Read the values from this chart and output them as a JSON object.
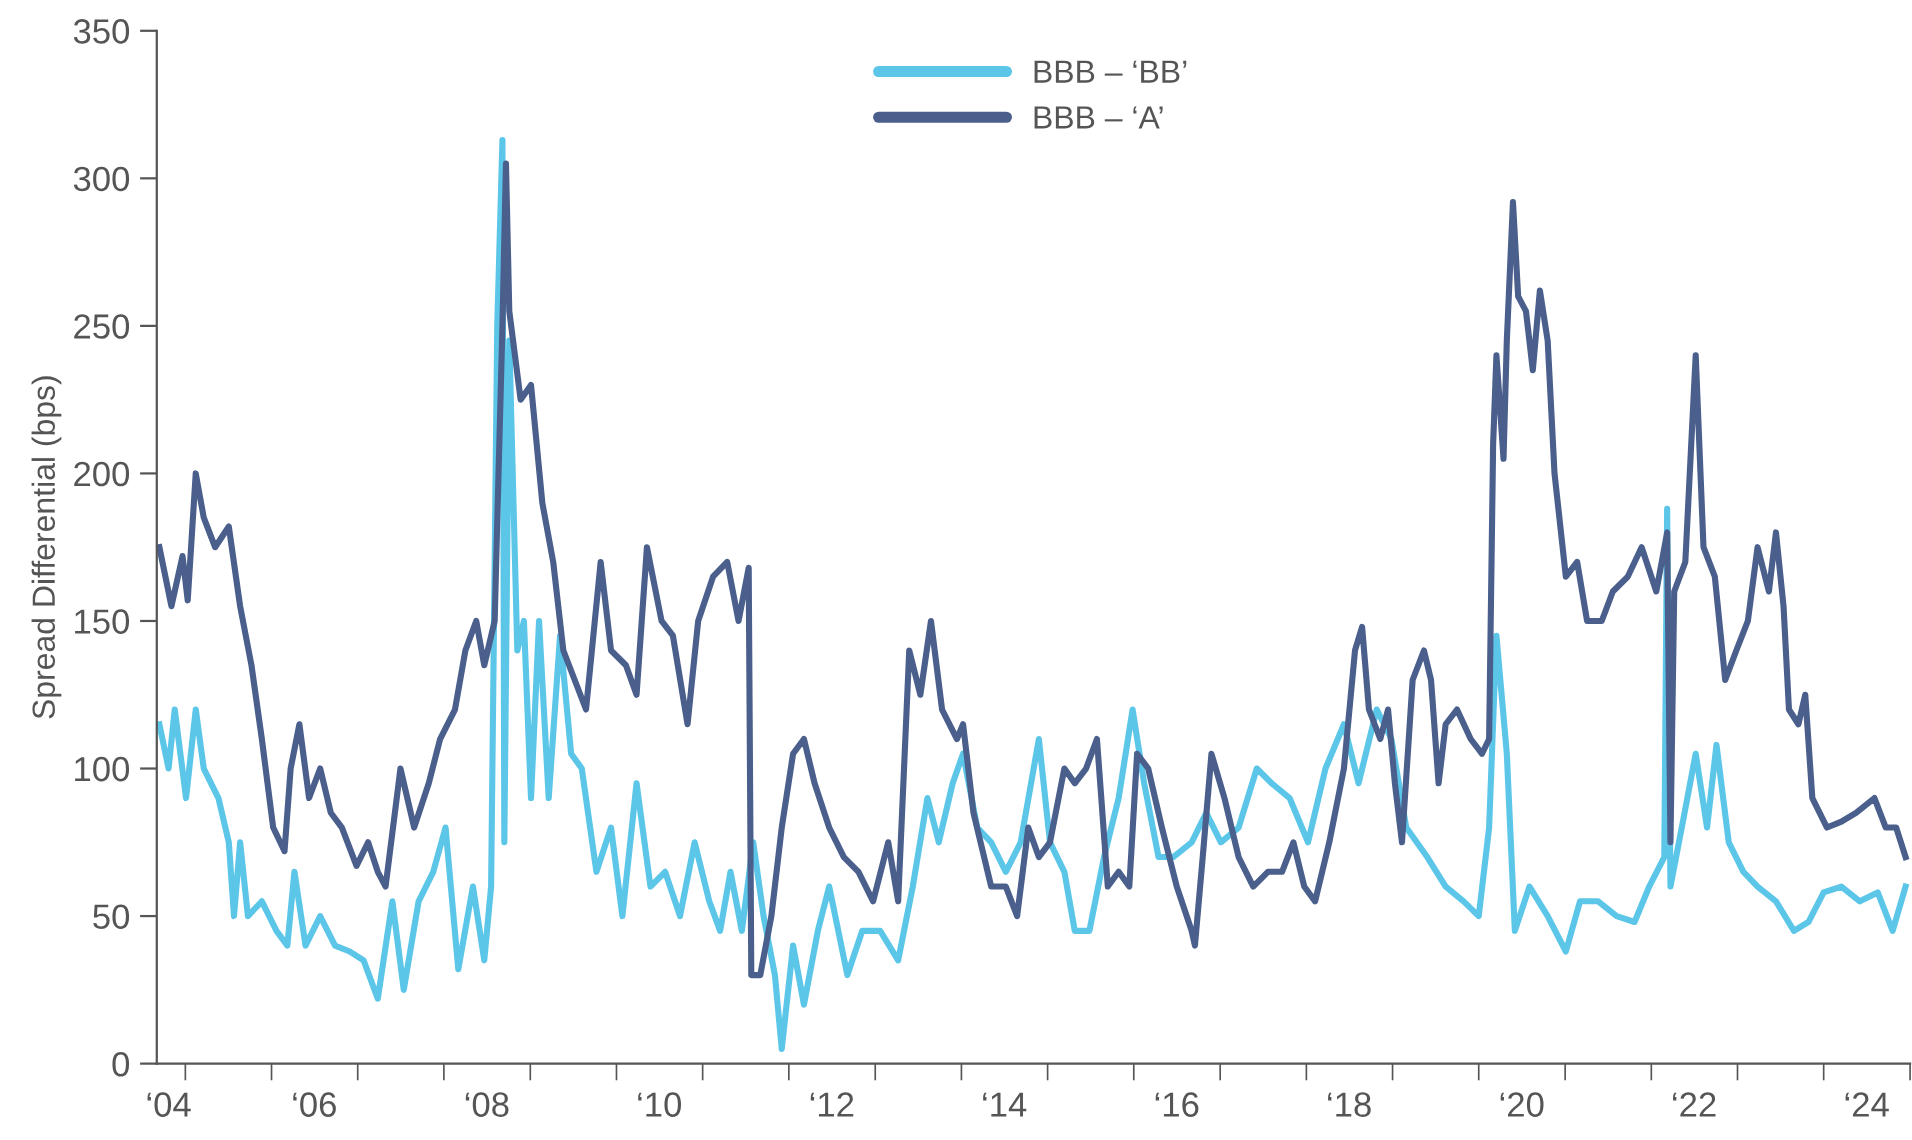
{
  "chart_data": {
    "type": "line",
    "ylabel": "Spread Differential (bps)",
    "xlim": [
      "2004-09-02",
      "2025-01-01"
    ],
    "ylim": [
      0,
      350
    ],
    "yticks": [
      0,
      50,
      100,
      150,
      200,
      250,
      300,
      350
    ],
    "xticks": [
      {
        "value": "2004-10-22",
        "label": "‘04"
      },
      {
        "value": "2006-07-01",
        "label": "‘06"
      },
      {
        "value": "2008-07-01",
        "label": "‘08"
      },
      {
        "value": "2010-07-01",
        "label": "‘10"
      },
      {
        "value": "2012-07-01",
        "label": "‘12"
      },
      {
        "value": "2014-07-01",
        "label": "‘14"
      },
      {
        "value": "2016-07-01",
        "label": "‘16"
      },
      {
        "value": "2018-07-01",
        "label": "‘18"
      },
      {
        "value": "2020-07-01",
        "label": "‘20"
      },
      {
        "value": "2022-07-01",
        "label": "‘22"
      },
      {
        "value": "2024-07-01",
        "label": "‘24"
      },
      {
        "value": "2005-01-01",
        "label": null
      },
      {
        "value": "2006-01-01",
        "label": null
      },
      {
        "value": "2007-01-01",
        "label": null
      },
      {
        "value": "2008-01-01",
        "label": null
      },
      {
        "value": "2009-01-01",
        "label": null
      },
      {
        "value": "2010-01-01",
        "label": null
      },
      {
        "value": "2011-01-01",
        "label": null
      },
      {
        "value": "2012-01-01",
        "label": null
      },
      {
        "value": "2013-01-01",
        "label": null
      },
      {
        "value": "2014-01-01",
        "label": null
      },
      {
        "value": "2015-01-01",
        "label": null
      },
      {
        "value": "2016-01-01",
        "label": null
      },
      {
        "value": "2017-01-01",
        "label": null
      },
      {
        "value": "2018-01-01",
        "label": null
      },
      {
        "value": "2019-01-01",
        "label": null
      },
      {
        "value": "2020-01-01",
        "label": null
      },
      {
        "value": "2021-01-01",
        "label": null
      },
      {
        "value": "2022-01-01",
        "label": null
      },
      {
        "value": "2023-01-01",
        "label": null
      },
      {
        "value": "2024-01-01",
        "label": null
      },
      {
        "value": "2025-01-01",
        "label": null
      }
    ],
    "grid": false,
    "legend": "top",
    "line_style": "solid",
    "marker": "none",
    "series": [
      {
        "name": "BBB – ‘BB’",
        "color": "#5cc6e9",
        "x": [
          "2004-09-13",
          "2004-10-22",
          "2004-11-17",
          "2005-01-04",
          "2005-02-14",
          "2005-03-20",
          "2005-05-21",
          "2005-07-04",
          "2005-07-26",
          "2005-08-21",
          "2005-09-23",
          "2005-11-21",
          "2006-01-22",
          "2006-03-09",
          "2006-04-08",
          "2006-05-25",
          "2006-07-26",
          "2006-09-27",
          "2006-11-28",
          "2007-01-26",
          "2007-03-27",
          "2007-05-28",
          "2007-07-15",
          "2007-09-16",
          "2007-11-17",
          "2008-01-08",
          "2008-03-02",
          "2008-05-03",
          "2008-06-20",
          "2008-07-19",
          "2008-08-14",
          "2008-09-05",
          "2008-09-13",
          "2008-10-04",
          "2008-11-07",
          "2008-12-05",
          "2009-01-04",
          "2009-02-07",
          "2009-03-20",
          "2009-05-07",
          "2009-06-23",
          "2009-08-07",
          "2009-10-08",
          "2009-12-09",
          "2010-01-26",
          "2010-03-27",
          "2010-05-25",
          "2010-07-26",
          "2010-09-27",
          "2010-11-28",
          "2011-01-29",
          "2011-03-16",
          "2011-04-29",
          "2011-06-16",
          "2011-08-03",
          "2011-09-16",
          "2011-11-03",
          "2011-12-02",
          "2012-01-19",
          "2012-03-05",
          "2012-05-03",
          "2012-06-20",
          "2012-09-05",
          "2012-11-07",
          "2013-01-22",
          "2013-04-08",
          "2013-06-09",
          "2013-08-10",
          "2013-09-27",
          "2013-11-25",
          "2014-01-08",
          "2014-03-09",
          "2014-05-07",
          "2014-07-08",
          "2014-09-09",
          "2014-11-25",
          "2015-01-11",
          "2015-03-13",
          "2015-04-26",
          "2015-06-27",
          "2015-08-28",
          "2015-10-29",
          "2015-12-27",
          "2016-02-14",
          "2016-04-15",
          "2016-06-16",
          "2016-09-02",
          "2016-11-03",
          "2017-01-04",
          "2017-03-20",
          "2017-06-05",
          "2017-08-07",
          "2017-10-22",
          "2018-01-08",
          "2018-03-23",
          "2018-06-09",
          "2018-08-10",
          "2018-10-26",
          "2018-12-27",
          "2019-02-28",
          "2019-05-28",
          "2019-08-14",
          "2019-10-29",
          "2020-01-01",
          "2020-02-14",
          "2020-03-16",
          "2020-04-29",
          "2020-06-02",
          "2020-08-03",
          "2020-10-19",
          "2021-01-04",
          "2021-03-05",
          "2021-05-21",
          "2021-08-07",
          "2021-10-22",
          "2021-12-23",
          "2022-02-25",
          "2022-03-09",
          "2022-03-23",
          "2022-05-10",
          "2022-07-08",
          "2022-08-25",
          "2022-10-04",
          "2022-11-25",
          "2023-01-26",
          "2023-03-27",
          "2023-06-13",
          "2023-08-28",
          "2023-10-29",
          "2024-01-01",
          "2024-03-16",
          "2024-06-02",
          "2024-08-17",
          "2024-10-19",
          "2024-12-13"
        ],
        "values": [
          115,
          100,
          120,
          90,
          120,
          100,
          90,
          75,
          50,
          75,
          50,
          55,
          45,
          40,
          65,
          40,
          50,
          40,
          38,
          35,
          22,
          55,
          25,
          55,
          65,
          80,
          32,
          60,
          35,
          60,
          250,
          313,
          75,
          245,
          140,
          150,
          90,
          150,
          90,
          145,
          105,
          100,
          65,
          80,
          50,
          95,
          60,
          65,
          50,
          75,
          55,
          45,
          65,
          45,
          75,
          50,
          30,
          5,
          40,
          20,
          45,
          60,
          30,
          45,
          45,
          35,
          60,
          90,
          75,
          95,
          105,
          80,
          75,
          65,
          75,
          110,
          75,
          65,
          45,
          45,
          70,
          90,
          120,
          95,
          70,
          70,
          75,
          85,
          75,
          80,
          100,
          95,
          90,
          75,
          100,
          115,
          95,
          120,
          110,
          80,
          70,
          60,
          55,
          50,
          80,
          145,
          105,
          45,
          60,
          50,
          38,
          55,
          55,
          50,
          48,
          60,
          70,
          188,
          60,
          80,
          105,
          80,
          108,
          75,
          65,
          60,
          55,
          45,
          48,
          58,
          60,
          55,
          58,
          45,
          60
        ]
      },
      {
        "name": "BBB – ‘A’",
        "color": "#4a5f8c",
        "x": [
          "2004-09-13",
          "2004-11-03",
          "2004-12-20",
          "2005-01-11",
          "2005-02-14",
          "2005-03-20",
          "2005-05-07",
          "2005-07-04",
          "2005-08-21",
          "2005-10-08",
          "2005-11-21",
          "2006-01-08",
          "2006-02-25",
          "2006-03-23",
          "2006-04-29",
          "2006-06-09",
          "2006-07-26",
          "2006-09-09",
          "2006-10-26",
          "2006-12-27",
          "2007-02-14",
          "2007-03-27",
          "2007-04-29",
          "2007-07-01",
          "2007-08-28",
          "2007-10-29",
          "2007-12-16",
          "2008-02-17",
          "2008-04-01",
          "2008-05-17",
          "2008-06-20",
          "2008-08-03",
          "2008-09-05",
          "2008-09-20",
          "2008-10-04",
          "2008-11-21",
          "2009-01-04",
          "2009-02-21",
          "2009-04-08",
          "2009-05-21",
          "2009-07-08",
          "2009-08-25",
          "2009-10-26",
          "2009-12-09",
          "2010-02-10",
          "2010-03-27",
          "2010-05-10",
          "2010-07-11",
          "2010-08-28",
          "2010-10-29",
          "2010-12-13",
          "2011-02-14",
          "2011-04-15",
          "2011-06-02",
          "2011-07-15",
          "2011-07-26",
          "2011-09-02",
          "2011-10-19",
          "2011-12-02",
          "2012-01-19",
          "2012-03-05",
          "2012-04-19",
          "2012-06-20",
          "2012-08-21",
          "2012-10-22",
          "2012-12-23",
          "2013-02-25",
          "2013-04-08",
          "2013-05-25",
          "2013-07-11",
          "2013-08-25",
          "2013-10-11",
          "2013-12-13",
          "2014-01-08",
          "2014-02-21",
          "2014-05-07",
          "2014-07-08",
          "2014-08-25",
          "2014-10-11",
          "2014-11-25",
          "2015-01-11",
          "2015-03-13",
          "2015-04-26",
          "2015-06-13",
          "2015-07-29",
          "2015-09-13",
          "2015-10-29",
          "2015-12-13",
          "2016-01-15",
          "2016-03-02",
          "2016-04-29",
          "2016-07-01",
          "2016-09-02",
          "2016-09-16",
          "2016-10-19",
          "2016-11-25",
          "2017-01-19",
          "2017-03-20",
          "2017-05-21",
          "2017-07-22",
          "2017-09-20",
          "2017-11-07",
          "2017-12-23",
          "2018-02-07",
          "2018-04-08",
          "2018-06-09",
          "2018-07-26",
          "2018-08-25",
          "2018-09-23",
          "2018-11-10",
          "2018-12-13",
          "2019-01-11",
          "2019-02-10",
          "2019-03-27",
          "2019-05-14",
          "2019-06-13",
          "2019-07-15",
          "2019-08-14",
          "2019-10-01",
          "2019-11-28",
          "2020-01-15",
          "2020-02-14",
          "2020-03-02",
          "2020-03-16",
          "2020-04-15",
          "2020-04-29",
          "2020-05-25",
          "2020-06-16",
          "2020-07-19",
          "2020-08-17",
          "2020-09-16",
          "2020-10-19",
          "2020-11-17",
          "2021-01-04",
          "2021-02-21",
          "2021-04-04",
          "2021-06-05",
          "2021-07-22",
          "2021-09-23",
          "2021-11-21",
          "2022-01-22",
          "2022-03-09",
          "2022-03-23",
          "2022-04-08",
          "2022-05-25",
          "2022-07-08",
          "2022-08-10",
          "2022-09-27",
          "2022-11-10",
          "2022-12-27",
          "2023-02-14",
          "2023-03-27",
          "2023-05-14",
          "2023-06-13",
          "2023-07-15",
          "2023-08-07",
          "2023-09-16",
          "2023-10-15",
          "2023-11-14",
          "2024-01-15",
          "2024-03-16",
          "2024-05-17",
          "2024-08-03",
          "2024-09-20",
          "2024-11-03",
          "2024-12-13"
        ],
        "values": [
          175,
          155,
          172,
          157,
          200,
          185,
          175,
          182,
          155,
          135,
          110,
          80,
          72,
          100,
          115,
          90,
          100,
          85,
          80,
          67,
          75,
          65,
          60,
          100,
          80,
          95,
          110,
          120,
          140,
          150,
          135,
          150,
          250,
          305,
          255,
          225,
          230,
          190,
          170,
          140,
          130,
          120,
          170,
          140,
          135,
          125,
          175,
          150,
          145,
          115,
          150,
          165,
          170,
          150,
          168,
          30,
          30,
          50,
          80,
          105,
          110,
          95,
          80,
          70,
          65,
          55,
          75,
          55,
          140,
          125,
          150,
          120,
          110,
          115,
          85,
          60,
          60,
          50,
          80,
          70,
          75,
          100,
          95,
          100,
          110,
          60,
          65,
          60,
          105,
          100,
          80,
          60,
          45,
          40,
          70,
          105,
          90,
          70,
          60,
          65,
          65,
          75,
          60,
          55,
          75,
          100,
          140,
          148,
          120,
          110,
          120,
          95,
          75,
          130,
          140,
          130,
          95,
          115,
          120,
          110,
          105,
          110,
          210,
          240,
          205,
          245,
          292,
          260,
          255,
          235,
          262,
          245,
          200,
          165,
          170,
          150,
          150,
          160,
          165,
          175,
          160,
          180,
          75,
          160,
          170,
          240,
          175,
          165,
          130,
          140,
          150,
          175,
          160,
          180,
          155,
          120,
          115,
          125,
          90,
          80,
          82,
          85,
          90,
          80,
          80,
          70
        ]
      }
    ]
  }
}
